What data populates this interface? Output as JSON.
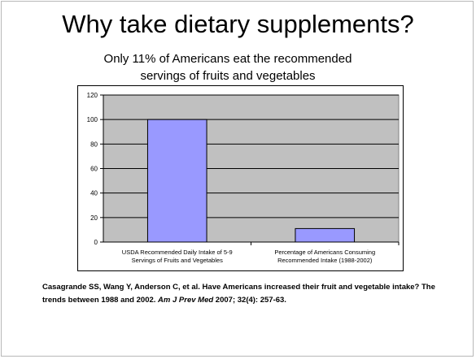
{
  "slide": {
    "title": "Why take dietary supplements?",
    "subtitle_line1": "Only  11% of Americans eat the recommended",
    "subtitle_line2": "servings of fruits and vegetables"
  },
  "citation": {
    "authors_title": "Casagrande SS, Wang Y, Anderson C, et al. Have Americans increased their fruit and vegetable intake? The trends between 1988 and 2002. ",
    "journal": "Am J Prev Med",
    "rest": " 2007; 32(4): 257-63."
  },
  "chart_data": {
    "type": "bar",
    "title": "",
    "xlabel": "",
    "ylabel": "",
    "categories": [
      [
        "USDA Recommended Daily Intake of 5-9",
        "Servings of Fruits and Vegetables"
      ],
      [
        "Percentage of Americans Consuming",
        "Recommended Intake (1988-2002)"
      ]
    ],
    "values": [
      100,
      11
    ],
    "ylim": [
      0,
      120
    ],
    "yticks": [
      0,
      20,
      40,
      60,
      80,
      100,
      120
    ],
    "grid": true,
    "legend": "none",
    "colors": {
      "bar": "#9999ff",
      "plot_bg": "#c0c0c0",
      "grid": "#000000"
    }
  }
}
